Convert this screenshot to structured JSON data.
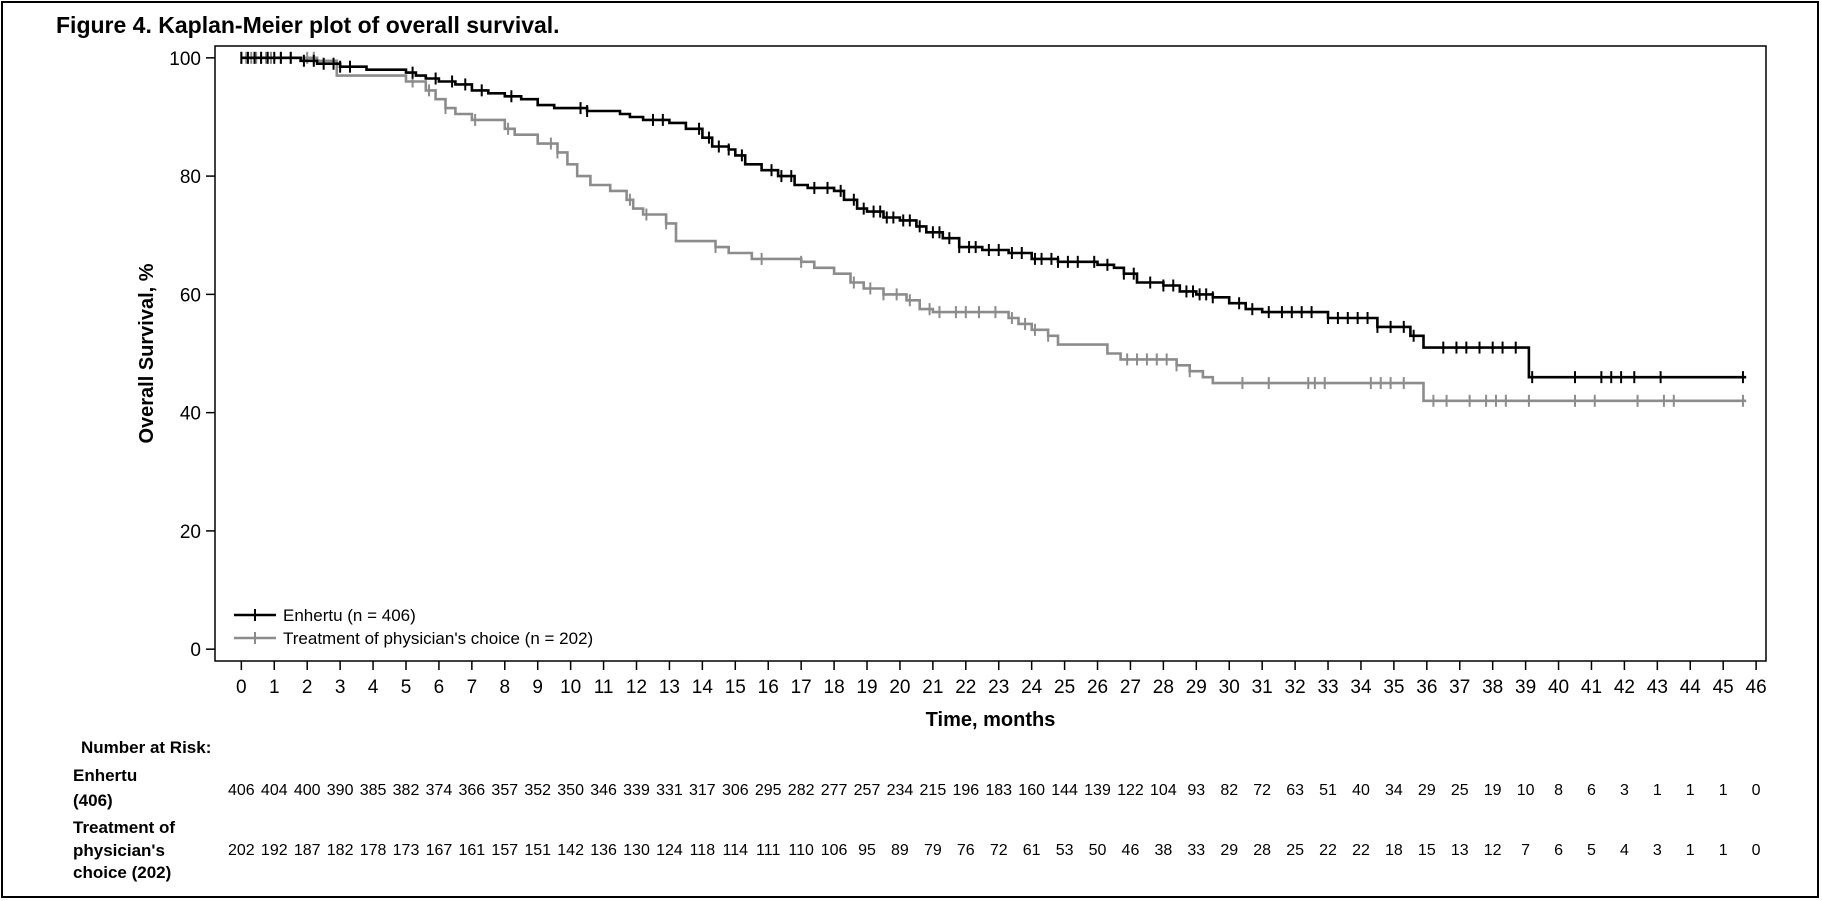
{
  "figure_title": "Figure 4. Kaplan-Meier plot of overall survival.",
  "colors": {
    "enhertu": "#000000",
    "tpc": "#8c8c8c",
    "axis": "#000000"
  },
  "chart_data": {
    "type": "line",
    "subtype": "kaplan-meier",
    "title": "Figure 4. Kaplan-Meier plot of overall survival.",
    "xlabel": "Time, months",
    "ylabel": "Overall Survival, %",
    "xlim": [
      -0.8,
      46.3
    ],
    "ylim": [
      -2,
      102
    ],
    "xticks": [
      0,
      1,
      2,
      3,
      4,
      5,
      6,
      7,
      8,
      9,
      10,
      11,
      12,
      13,
      14,
      15,
      16,
      17,
      18,
      19,
      20,
      21,
      22,
      23,
      24,
      25,
      26,
      27,
      28,
      29,
      30,
      31,
      32,
      33,
      34,
      35,
      36,
      37,
      38,
      39,
      40,
      41,
      42,
      43,
      44,
      45,
      46
    ],
    "yticks": [
      0,
      20,
      40,
      60,
      80,
      100
    ],
    "grid": false,
    "legend_position": "bottom-left",
    "series": [
      {
        "name": "Enhertu (n = 406)",
        "color": "#000000",
        "steps": [
          [
            0,
            100
          ],
          [
            1.8,
            99.5
          ],
          [
            2.3,
            99
          ],
          [
            3,
            98.5
          ],
          [
            3.8,
            98
          ],
          [
            5,
            97.5
          ],
          [
            5.3,
            97
          ],
          [
            5.6,
            96.5
          ],
          [
            6,
            96
          ],
          [
            6.5,
            95.5
          ],
          [
            7,
            94.5
          ],
          [
            7.5,
            94
          ],
          [
            8,
            93.5
          ],
          [
            8.5,
            93
          ],
          [
            9,
            92
          ],
          [
            9.5,
            91.5
          ],
          [
            10.5,
            91
          ],
          [
            11.5,
            90.5
          ],
          [
            11.8,
            90
          ],
          [
            12.2,
            89.5
          ],
          [
            13,
            89
          ],
          [
            13.5,
            88
          ],
          [
            14,
            86.5
          ],
          [
            14.3,
            85
          ],
          [
            14.8,
            84.5
          ],
          [
            15,
            83.5
          ],
          [
            15.3,
            82
          ],
          [
            15.8,
            81
          ],
          [
            16.3,
            80
          ],
          [
            16.8,
            78.5
          ],
          [
            17.2,
            78
          ],
          [
            18,
            77.5
          ],
          [
            18.3,
            76
          ],
          [
            18.7,
            74.5
          ],
          [
            19,
            74
          ],
          [
            19.5,
            73
          ],
          [
            20,
            72.5
          ],
          [
            20.5,
            71.5
          ],
          [
            20.8,
            70.5
          ],
          [
            21.3,
            69.5
          ],
          [
            21.8,
            68
          ],
          [
            22.5,
            67.5
          ],
          [
            23.3,
            67
          ],
          [
            24,
            66
          ],
          [
            24.8,
            65.5
          ],
          [
            26,
            65
          ],
          [
            26.5,
            64.5
          ],
          [
            26.8,
            63.5
          ],
          [
            27.2,
            62
          ],
          [
            28,
            61.5
          ],
          [
            28.5,
            60.5
          ],
          [
            29,
            60
          ],
          [
            29.5,
            59.5
          ],
          [
            30,
            58.5
          ],
          [
            30.5,
            57.5
          ],
          [
            31,
            57
          ],
          [
            33,
            56
          ],
          [
            34.5,
            54.5
          ],
          [
            35.5,
            53
          ],
          [
            35.9,
            51
          ],
          [
            39,
            51
          ],
          [
            39.1,
            46
          ],
          [
            45.7,
            46
          ]
        ],
        "censor_times": [
          0,
          0.2,
          0.4,
          0.6,
          0.8,
          1,
          1.2,
          1.5,
          1.9,
          2.2,
          2.5,
          2.8,
          3,
          3.3,
          5.2,
          5.9,
          6.4,
          6.8,
          7.3,
          8.2,
          10.3,
          10.5,
          12.5,
          12.8,
          13.9,
          14.2,
          14.5,
          14.8,
          15.2,
          16.1,
          16.4,
          16.7,
          17.4,
          17.8,
          18.2,
          18.6,
          18.9,
          19.2,
          19.4,
          19.6,
          19.8,
          20.1,
          20.3,
          20.6,
          21,
          21.2,
          21.5,
          21.8,
          22.1,
          22.3,
          22.7,
          23,
          23.4,
          23.7,
          24.1,
          24.3,
          24.6,
          24.8,
          25.1,
          25.4,
          25.9,
          26.3,
          26.8,
          27.1,
          27.6,
          28,
          28.3,
          28.7,
          28.9,
          29.1,
          29.3,
          29.5,
          30.3,
          30.7,
          31.2,
          31.6,
          31.9,
          32.2,
          32.5,
          33,
          33.3,
          33.6,
          33.9,
          34.2,
          34.5,
          34.9,
          35.3,
          35.6,
          36.5,
          36.9,
          37.2,
          37.6,
          38,
          38.3,
          38.7,
          39.2,
          40.5,
          41.3,
          41.6,
          41.9,
          42.3,
          43.1,
          45.6
        ],
        "risk_label": [
          "Enhertu",
          "(406)"
        ],
        "number_at_risk": [
          406,
          404,
          400,
          390,
          385,
          382,
          374,
          366,
          357,
          352,
          350,
          346,
          339,
          331,
          317,
          306,
          295,
          282,
          277,
          257,
          234,
          215,
          196,
          183,
          160,
          144,
          139,
          122,
          104,
          93,
          82,
          72,
          63,
          51,
          40,
          34,
          29,
          25,
          19,
          10,
          8,
          6,
          3,
          1,
          1,
          1,
          0
        ]
      },
      {
        "name": "Treatment of physician's choice (n = 202)",
        "color": "#8c8c8c",
        "steps": [
          [
            0,
            100
          ],
          [
            2.3,
            99.5
          ],
          [
            2.9,
            97
          ],
          [
            5,
            96
          ],
          [
            5.6,
            94.5
          ],
          [
            5.9,
            93
          ],
          [
            6.2,
            91.5
          ],
          [
            6.5,
            90.5
          ],
          [
            7,
            89.5
          ],
          [
            8,
            88
          ],
          [
            8.3,
            87
          ],
          [
            9,
            85.5
          ],
          [
            9.6,
            84
          ],
          [
            9.9,
            82
          ],
          [
            10.2,
            80
          ],
          [
            10.6,
            78.5
          ],
          [
            11.2,
            77.5
          ],
          [
            11.7,
            76
          ],
          [
            11.9,
            74.5
          ],
          [
            12.2,
            73.5
          ],
          [
            12.9,
            72
          ],
          [
            13.2,
            69
          ],
          [
            14.4,
            68
          ],
          [
            14.8,
            67
          ],
          [
            15.5,
            66
          ],
          [
            17,
            65.5
          ],
          [
            17.4,
            64.5
          ],
          [
            18,
            63.5
          ],
          [
            18.5,
            62
          ],
          [
            18.9,
            61
          ],
          [
            19.5,
            60
          ],
          [
            20.2,
            59
          ],
          [
            20.6,
            57.5
          ],
          [
            21,
            57
          ],
          [
            23.3,
            56
          ],
          [
            23.6,
            55
          ],
          [
            24,
            54
          ],
          [
            24.5,
            53
          ],
          [
            24.8,
            51.5
          ],
          [
            26.3,
            50
          ],
          [
            26.7,
            49
          ],
          [
            28.4,
            48
          ],
          [
            28.8,
            47
          ],
          [
            29.2,
            46
          ],
          [
            29.5,
            45
          ],
          [
            35.9,
            42
          ],
          [
            45.7,
            42
          ]
        ],
        "censor_times": [
          0,
          0.15,
          0.3,
          0.45,
          0.6,
          0.75,
          0.9,
          1.2,
          1.5,
          2,
          2.2,
          5.2,
          5.7,
          6.2,
          7.1,
          8.1,
          9.4,
          9.6,
          11.8,
          12.3,
          12.9,
          14.4,
          15.8,
          17,
          18.6,
          19.1,
          19.5,
          19.9,
          20.3,
          20.9,
          21.2,
          21.7,
          22,
          22.4,
          22.9,
          23.4,
          23.8,
          24.1,
          24.5,
          26.9,
          27.2,
          27.5,
          27.8,
          28.1,
          28.4,
          28.8,
          30.4,
          31.2,
          32.4,
          32.6,
          32.9,
          34.3,
          34.6,
          34.9,
          35.3,
          36.2,
          36.6,
          37.3,
          37.8,
          38.1,
          38.4,
          39.1,
          40.5,
          41.1,
          42.4,
          43.2,
          43.5,
          45.6
        ],
        "risk_label": [
          "Treatment of",
          "physician's",
          "choice (202)"
        ],
        "number_at_risk": [
          202,
          192,
          187,
          182,
          178,
          173,
          167,
          161,
          157,
          151,
          142,
          136,
          130,
          124,
          118,
          114,
          111,
          110,
          106,
          95,
          89,
          79,
          76,
          72,
          61,
          53,
          50,
          46,
          38,
          33,
          29,
          28,
          25,
          22,
          22,
          18,
          15,
          13,
          12,
          7,
          6,
          5,
          4,
          3,
          1,
          1,
          0
        ]
      }
    ],
    "risk_table_title": "Number at Risk:"
  }
}
